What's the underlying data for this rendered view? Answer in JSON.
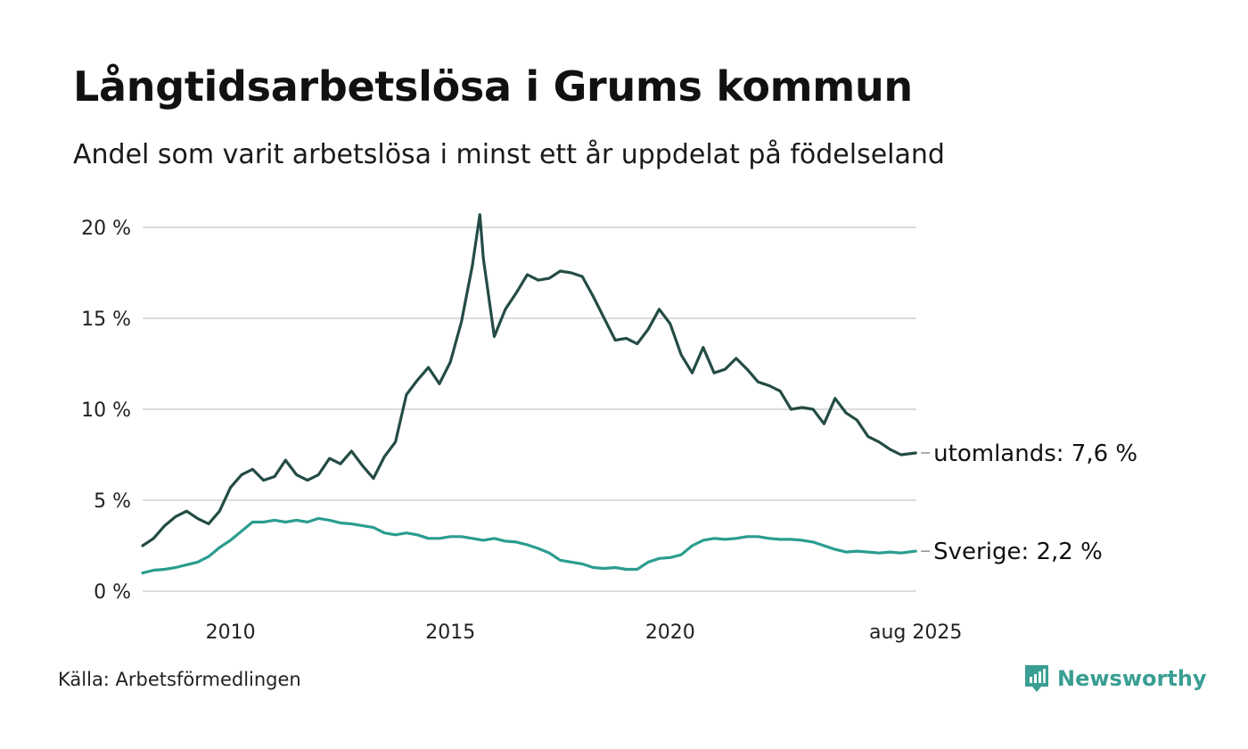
{
  "title": "Långtidsarbetslösa i Grums kommun",
  "subtitle": "Andel som varit arbetslösa i minst ett år uppdelat på födelseland",
  "source": "Källa: Arbetsförmedlingen",
  "brand": {
    "name": "Newsworthy",
    "icon": "newsworthy-logo-icon",
    "color": "#3a9e93"
  },
  "chart_data": {
    "type": "line",
    "title": "Långtidsarbetslösa i Grums kommun",
    "subtitle": "Andel som varit arbetslösa i minst ett år uppdelat på födelseland",
    "xlabel": "",
    "ylabel": "",
    "ylim": [
      0,
      20
    ],
    "xlim": [
      2008.0,
      2025.6
    ],
    "grid": true,
    "y_ticks": [
      0,
      5,
      10,
      15,
      20
    ],
    "y_tick_labels": [
      "0 %",
      "5 %",
      "10 %",
      "15 %",
      "20 %"
    ],
    "x_ticks": [
      2010,
      2015,
      2020,
      2025.583
    ],
    "x_tick_labels": [
      "2010",
      "2015",
      "2020",
      "aug 2025"
    ],
    "series": [
      {
        "name": "utomlands",
        "end_label": "utomlands: 7,6 %",
        "color": "#234c45",
        "x": [
          2008.0,
          2008.25,
          2008.5,
          2008.75,
          2009.0,
          2009.25,
          2009.5,
          2009.75,
          2010.0,
          2010.25,
          2010.5,
          2010.75,
          2011.0,
          2011.25,
          2011.5,
          2011.75,
          2012.0,
          2012.25,
          2012.5,
          2012.75,
          2013.0,
          2013.25,
          2013.5,
          2013.75,
          2014.0,
          2014.25,
          2014.5,
          2014.75,
          2015.0,
          2015.25,
          2015.5,
          2015.67,
          2015.75,
          2016.0,
          2016.25,
          2016.5,
          2016.75,
          2017.0,
          2017.25,
          2017.5,
          2017.75,
          2018.0,
          2018.25,
          2018.5,
          2018.75,
          2019.0,
          2019.25,
          2019.5,
          2019.75,
          2020.0,
          2020.25,
          2020.5,
          2020.75,
          2021.0,
          2021.25,
          2021.5,
          2021.75,
          2022.0,
          2022.25,
          2022.5,
          2022.75,
          2023.0,
          2023.25,
          2023.5,
          2023.75,
          2024.0,
          2024.25,
          2024.5,
          2024.75,
          2025.0,
          2025.25,
          2025.583
        ],
        "values": [
          2.5,
          2.9,
          3.6,
          4.1,
          4.4,
          4.0,
          3.7,
          4.4,
          5.7,
          6.4,
          6.7,
          6.1,
          6.3,
          7.2,
          6.4,
          6.1,
          6.4,
          7.3,
          7.0,
          7.7,
          6.9,
          6.2,
          7.4,
          8.2,
          10.8,
          11.6,
          12.3,
          11.4,
          12.6,
          14.8,
          17.9,
          20.7,
          18.3,
          14.0,
          15.5,
          16.4,
          17.4,
          17.1,
          17.2,
          17.6,
          17.5,
          17.3,
          16.2,
          15.0,
          13.8,
          13.9,
          13.6,
          14.4,
          15.5,
          14.7,
          13.0,
          12.0,
          13.4,
          12.0,
          12.2,
          12.8,
          12.2,
          11.5,
          11.3,
          11.0,
          10.0,
          10.1,
          10.0,
          9.2,
          10.6,
          9.8,
          9.4,
          8.5,
          8.2,
          7.8,
          7.5,
          7.6
        ]
      },
      {
        "name": "Sverige",
        "end_label": "Sverige: 2,2 %",
        "color": "#2a9d8f",
        "x": [
          2008.0,
          2008.25,
          2008.5,
          2008.75,
          2009.0,
          2009.25,
          2009.5,
          2009.75,
          2010.0,
          2010.25,
          2010.5,
          2010.75,
          2011.0,
          2011.25,
          2011.5,
          2011.75,
          2012.0,
          2012.25,
          2012.5,
          2012.75,
          2013.0,
          2013.25,
          2013.5,
          2013.75,
          2014.0,
          2014.25,
          2014.5,
          2014.75,
          2015.0,
          2015.25,
          2015.5,
          2015.75,
          2016.0,
          2016.25,
          2016.5,
          2016.75,
          2017.0,
          2017.25,
          2017.5,
          2017.75,
          2018.0,
          2018.25,
          2018.5,
          2018.75,
          2019.0,
          2019.25,
          2019.5,
          2019.75,
          2020.0,
          2020.25,
          2020.5,
          2020.75,
          2021.0,
          2021.25,
          2021.5,
          2021.75,
          2022.0,
          2022.25,
          2022.5,
          2022.75,
          2023.0,
          2023.25,
          2023.5,
          2023.75,
          2024.0,
          2024.25,
          2024.5,
          2024.75,
          2025.0,
          2025.25,
          2025.583
        ],
        "values": [
          1.0,
          1.15,
          1.2,
          1.3,
          1.45,
          1.6,
          1.9,
          2.4,
          2.8,
          3.3,
          3.8,
          3.8,
          3.9,
          3.8,
          3.9,
          3.8,
          4.0,
          3.9,
          3.75,
          3.7,
          3.6,
          3.5,
          3.2,
          3.1,
          3.2,
          3.1,
          2.9,
          2.9,
          3.0,
          3.0,
          2.9,
          2.8,
          2.9,
          2.75,
          2.7,
          2.55,
          2.35,
          2.1,
          1.7,
          1.6,
          1.5,
          1.3,
          1.25,
          1.3,
          1.2,
          1.2,
          1.6,
          1.8,
          1.85,
          2.0,
          2.5,
          2.8,
          2.9,
          2.85,
          2.9,
          3.0,
          3.0,
          2.9,
          2.85,
          2.85,
          2.8,
          2.7,
          2.5,
          2.3,
          2.15,
          2.2,
          2.15,
          2.1,
          2.15,
          2.1,
          2.2
        ]
      }
    ]
  }
}
